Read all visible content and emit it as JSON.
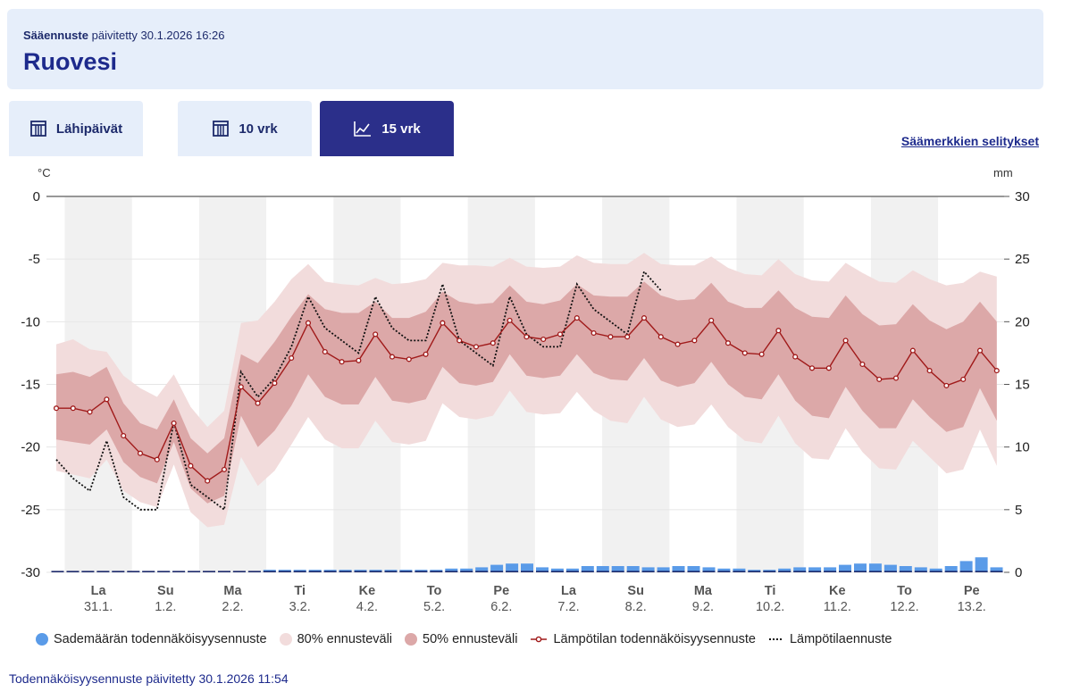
{
  "header": {
    "label": "Sääennuste",
    "updated": "päivitetty 30.1.2026 16:26",
    "title": "Ruovesi"
  },
  "tabs": [
    {
      "label": "Lähipäivät",
      "icon": "calendar-icon",
      "active": false
    },
    {
      "label": "10 vrk",
      "icon": "calendar-icon",
      "active": false
    },
    {
      "label": "15 vrk",
      "icon": "line-chart-icon",
      "active": true
    }
  ],
  "symbols_link": "Säämerkkien selitykset",
  "chart_data": {
    "type": "line",
    "left_axis": {
      "unit": "°C",
      "ticks": [
        0,
        -5,
        -10,
        -15,
        -20,
        -25,
        -30
      ],
      "range": [
        -30,
        0
      ]
    },
    "right_axis": {
      "unit": "mm",
      "ticks": [
        30,
        25,
        20,
        15,
        10,
        5,
        0
      ],
      "range": [
        0,
        30
      ]
    },
    "days": [
      {
        "name": "La",
        "date": "31.1."
      },
      {
        "name": "Su",
        "date": "1.2."
      },
      {
        "name": "Ma",
        "date": "2.2."
      },
      {
        "name": "Ti",
        "date": "3.2."
      },
      {
        "name": "Ke",
        "date": "4.2."
      },
      {
        "name": "To",
        "date": "5.2."
      },
      {
        "name": "Pe",
        "date": "6.2."
      },
      {
        "name": "La",
        "date": "7.2."
      },
      {
        "name": "Su",
        "date": "8.2."
      },
      {
        "name": "Ma",
        "date": "9.2."
      },
      {
        "name": "Ti",
        "date": "10.2."
      },
      {
        "name": "Ke",
        "date": "11.2."
      },
      {
        "name": "To",
        "date": "12.2."
      },
      {
        "name": "Pe",
        "date": "13.2."
      }
    ],
    "time_step_days": 0.25,
    "probability_forecast": {
      "median": [
        -16.9,
        -16.9,
        -17.2,
        -16.2,
        -19.1,
        -20.5,
        -21.0,
        -18.1,
        -21.5,
        -22.7,
        -21.8,
        -15.2,
        -16.5,
        -14.9,
        -12.9,
        -10.1,
        -12.4,
        -13.2,
        -13.1,
        -11.0,
        -12.8,
        -13.0,
        -12.6,
        -10.1,
        -11.5,
        -12.0,
        -11.7,
        -9.9,
        -11.2,
        -11.4,
        -11.0,
        -9.7,
        -10.9,
        -11.2,
        -11.2,
        -9.7,
        -11.2,
        -11.8,
        -11.5,
        -9.9,
        -11.7,
        -12.5,
        -12.6,
        -10.7,
        -12.8,
        -13.7,
        -13.7,
        -11.5,
        -13.4,
        -14.6,
        -14.5,
        -12.3,
        -13.9,
        -15.1,
        -14.6,
        -12.3,
        -13.9
      ],
      "p25": [
        -19.4,
        -19.6,
        -19.8,
        -18.6,
        -21.2,
        -22.4,
        -22.9,
        -19.6,
        -23.3,
        -24.5,
        -23.9,
        -17.5,
        -20.0,
        -18.7,
        -16.7,
        -14.2,
        -16.0,
        -16.6,
        -16.6,
        -14.4,
        -16.3,
        -16.5,
        -16.2,
        -13.6,
        -14.9,
        -15.1,
        -14.8,
        -12.6,
        -14.3,
        -14.5,
        -14.3,
        -12.6,
        -14.1,
        -14.6,
        -14.7,
        -12.9,
        -14.7,
        -15.2,
        -14.9,
        -13.2,
        -15.0,
        -16.0,
        -16.2,
        -14.2,
        -16.3,
        -17.5,
        -17.7,
        -15.2,
        -17.1,
        -18.5,
        -18.5,
        -16.2,
        -17.6,
        -18.8,
        -18.4,
        -15.3,
        -17.9
      ],
      "p75": [
        -14.2,
        -14.0,
        -14.4,
        -13.6,
        -16.5,
        -18.1,
        -18.6,
        -16.2,
        -19.3,
        -20.5,
        -19.3,
        -12.6,
        -13.3,
        -11.6,
        -9.6,
        -7.8,
        -9.0,
        -9.3,
        -9.3,
        -8.4,
        -9.7,
        -9.7,
        -9.2,
        -7.6,
        -8.4,
        -8.6,
        -8.5,
        -7.1,
        -8.4,
        -8.6,
        -8.3,
        -7.0,
        -7.9,
        -8.0,
        -8.0,
        -6.8,
        -7.9,
        -8.3,
        -8.2,
        -6.9,
        -8.4,
        -8.9,
        -8.9,
        -7.5,
        -8.9,
        -9.6,
        -9.7,
        -7.9,
        -9.4,
        -10.3,
        -10.2,
        -8.6,
        -9.9,
        -10.6,
        -10.0,
        -8.4,
        -10.0
      ],
      "p10": [
        -21.9,
        -22.2,
        -22.5,
        -21.0,
        -23.5,
        -24.4,
        -24.8,
        -21.4,
        -25.2,
        -26.4,
        -26.2,
        -20.8,
        -23.1,
        -21.9,
        -19.8,
        -17.6,
        -19.4,
        -20.1,
        -20.1,
        -17.9,
        -19.6,
        -19.8,
        -19.5,
        -16.5,
        -17.6,
        -17.8,
        -17.5,
        -15.5,
        -17.2,
        -17.4,
        -17.3,
        -15.6,
        -17.1,
        -17.9,
        -18.1,
        -16.0,
        -17.8,
        -18.4,
        -18.2,
        -16.6,
        -18.4,
        -19.5,
        -19.7,
        -17.5,
        -19.7,
        -20.9,
        -21.0,
        -18.5,
        -20.4,
        -21.7,
        -21.8,
        -19.5,
        -20.8,
        -22.1,
        -21.8,
        -18.6,
        -21.5
      ],
      "p90": [
        -11.8,
        -11.4,
        -12.2,
        -12.4,
        -14.3,
        -15.3,
        -16.0,
        -14.2,
        -16.8,
        -18.4,
        -17.1,
        -10.1,
        -9.9,
        -8.4,
        -6.6,
        -5.4,
        -6.8,
        -7.0,
        -7.1,
        -6.5,
        -7.0,
        -6.9,
        -6.6,
        -5.3,
        -5.5,
        -5.5,
        -5.6,
        -4.9,
        -5.6,
        -5.7,
        -5.6,
        -4.7,
        -5.3,
        -5.4,
        -5.4,
        -4.5,
        -5.4,
        -5.5,
        -5.5,
        -4.8,
        -5.7,
        -6.2,
        -6.3,
        -5.0,
        -6.2,
        -6.7,
        -6.8,
        -5.3,
        -6.1,
        -6.8,
        -6.9,
        -5.9,
        -6.6,
        -7.1,
        -6.9,
        -6.0,
        -6.4
      ]
    },
    "deterministic_forecast": [
      -21.0,
      -22.5,
      -23.5,
      -19.5,
      -24.0,
      -25.0,
      -25.0,
      -18.0,
      -23.0,
      -24.0,
      -25.0,
      -14.0,
      -16.0,
      -14.5,
      -12.0,
      -8.0,
      -10.5,
      -11.5,
      -12.5,
      -8.0,
      -10.5,
      -11.5,
      -11.5,
      -7.0,
      -11.5,
      -12.5,
      -13.5,
      -8.0,
      -11.0,
      -12.0,
      -12.0,
      -7.0,
      -9.0,
      -10.0,
      -11.0,
      -6.0,
      -7.5
    ],
    "precipitation_mm": [
      0.1,
      0.1,
      0.1,
      0.1,
      0.1,
      0.1,
      0.1,
      0.1,
      0.1,
      0.1,
      0.1,
      0.1,
      0.1,
      0.1,
      0.2,
      0.2,
      0.2,
      0.2,
      0.2,
      0.2,
      0.2,
      0.2,
      0.2,
      0.2,
      0.2,
      0.2,
      0.3,
      0.3,
      0.4,
      0.6,
      0.7,
      0.7,
      0.4,
      0.3,
      0.3,
      0.5,
      0.5,
      0.5,
      0.5,
      0.4,
      0.4,
      0.5,
      0.5,
      0.4,
      0.3,
      0.3,
      0.2,
      0.2,
      0.3,
      0.4,
      0.4,
      0.4,
      0.6,
      0.7,
      0.7,
      0.6,
      0.5,
      0.4,
      0.3,
      0.5,
      0.9,
      1.2,
      0.4
    ],
    "legend": [
      "Sademäärän todennäköisyysennuste",
      "80% ennusteväli",
      "50% ennusteväli",
      "Lämpötilan todennäköisyysennuste",
      "Lämpötilaennuste"
    ],
    "colors": {
      "band80": "#f2dcdc",
      "band50": "#dca8a8",
      "median": "#a01a1a",
      "deterministic": "#111111",
      "precip": "#5a9be8",
      "weekend": "#f1f1f1",
      "grid": "#e6e6e6"
    }
  },
  "footer": "Todennäköisyysennuste päivitetty 30.1.2026 11:54"
}
